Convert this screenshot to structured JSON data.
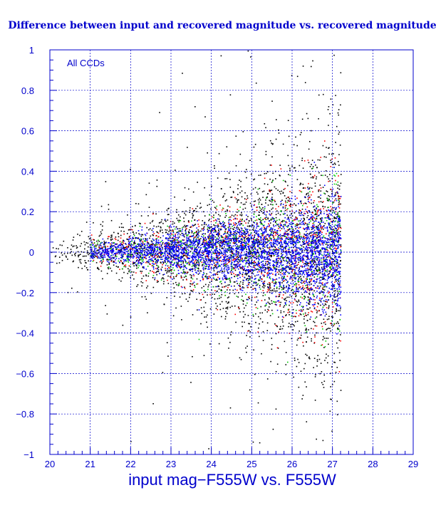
{
  "chart_data": {
    "type": "scatter",
    "title": "Difference between input and recovered magnitude vs. recovered magnitude",
    "xlabel": "input mag−F555W vs. F555W",
    "ylabel": "",
    "annotation": "All CCDs",
    "xlim": [
      20,
      29
    ],
    "ylim": [
      -1,
      1
    ],
    "x_ticks": [
      "20",
      "21",
      "22",
      "23",
      "24",
      "25",
      "26",
      "27",
      "28",
      "29"
    ],
    "y_ticks": [
      "−1",
      "−0.8",
      "−0.6",
      "−0.4",
      "−0.2",
      "0",
      "0.2",
      "0.4",
      "0.6",
      "0.8",
      "1"
    ],
    "grid": true,
    "legend": "none",
    "series_colors": [
      "#000000",
      "#ff0000",
      "#00cc00",
      "#0000ff"
    ],
    "frame_color": "#0000cc",
    "grid_color": "#0000cc",
    "approx_envelope": {
      "x": [
        20,
        21,
        22,
        23,
        24,
        25,
        26,
        27,
        27.2
      ],
      "center": [
        0.0,
        0.0,
        0.005,
        0.01,
        0.01,
        0.01,
        0.0,
        -0.01,
        -0.01
      ],
      "upper": [
        0.04,
        0.06,
        0.1,
        0.14,
        0.18,
        0.24,
        0.3,
        0.36,
        0.38
      ],
      "lower": [
        -0.03,
        -0.05,
        -0.09,
        -0.13,
        -0.18,
        -0.24,
        -0.32,
        -0.4,
        -0.42
      ],
      "cutoff": 27.2
    }
  }
}
